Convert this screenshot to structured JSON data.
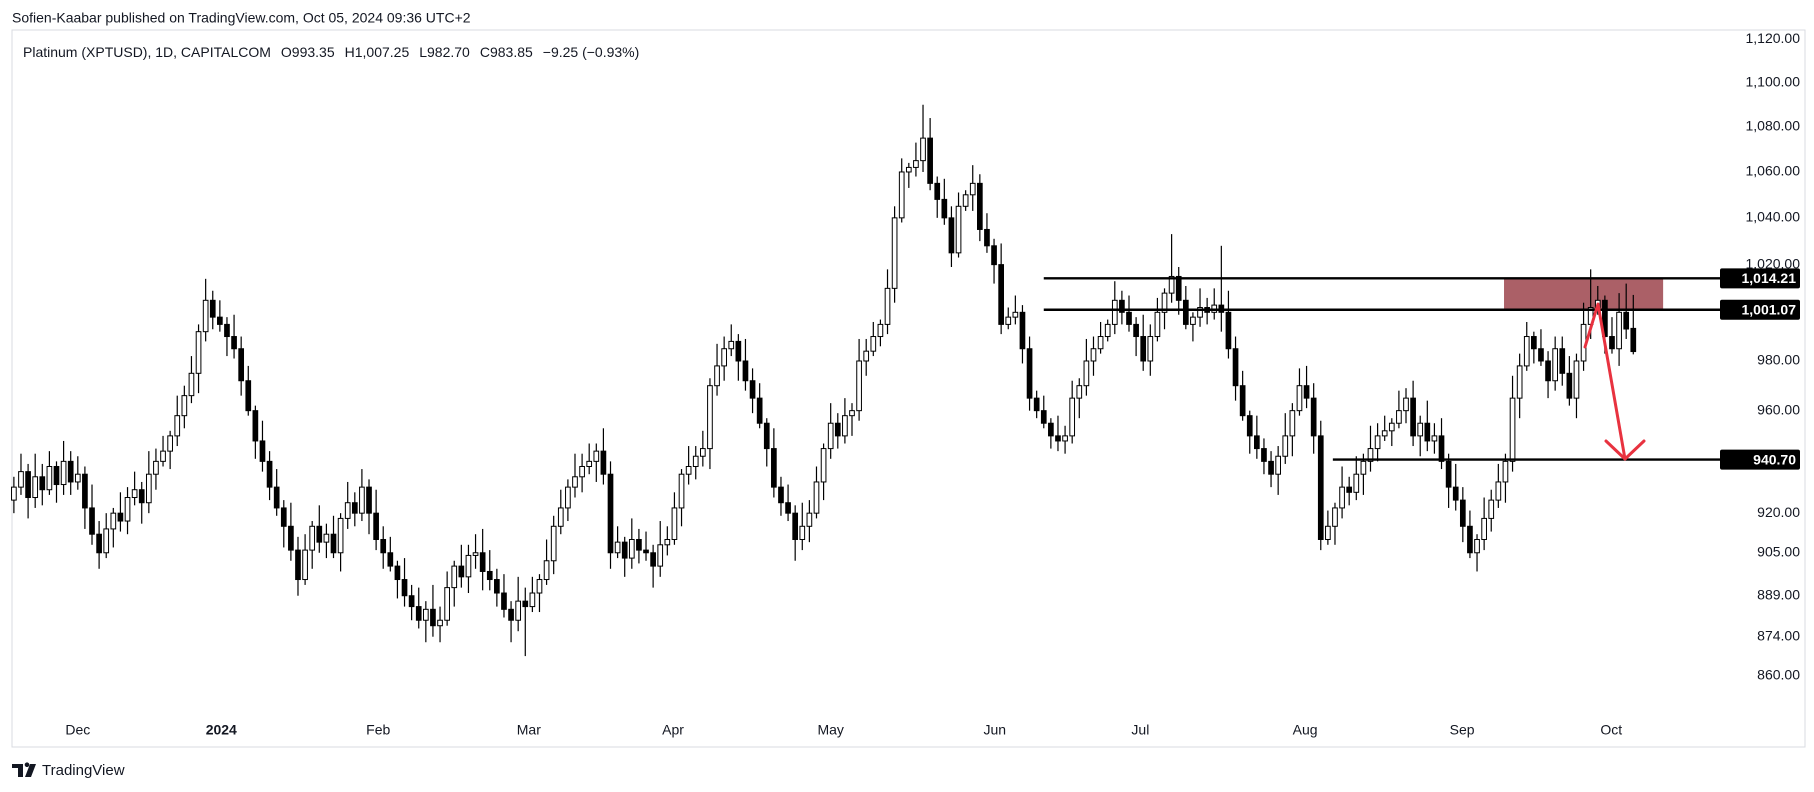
{
  "header": {
    "published": "Sofien-Kaabar published on TradingView.com, Oct 05, 2024 09:36 UTC+2",
    "brand": "TradingView"
  },
  "chart_data": {
    "type": "candlestick",
    "title": "Platinum (XPTUSD), 1D, CAPITALCOM",
    "legend_values": [
      "O993.35",
      "H1,007.25",
      "L982.70",
      "C983.85",
      "−9.25 (−0.93%)"
    ],
    "open": [
      925,
      930,
      936,
      926,
      934,
      929,
      938,
      931,
      940,
      932,
      935,
      922,
      912,
      905,
      914,
      920,
      917,
      926,
      929,
      924,
      935,
      940,
      944,
      950,
      958,
      966,
      975,
      992,
      1005,
      998,
      995,
      990,
      985,
      972,
      960,
      948,
      940,
      930,
      922,
      915,
      906,
      895,
      906,
      915,
      909,
      912,
      905,
      918,
      924,
      920,
      930,
      920,
      910,
      905,
      900,
      895,
      889,
      885,
      880,
      884,
      878,
      880,
      892,
      900,
      896,
      904,
      905,
      898,
      895,
      890,
      884,
      880,
      887,
      885,
      890,
      895,
      902,
      915,
      922,
      930,
      934,
      938,
      940,
      944,
      935,
      905,
      909,
      903,
      910,
      906,
      905,
      900,
      908,
      910,
      922,
      935,
      938,
      942,
      945,
      970,
      978,
      985,
      988,
      980,
      972,
      965,
      955,
      945,
      930,
      924,
      920,
      910,
      915,
      920,
      932,
      945,
      955,
      950,
      958,
      960,
      980,
      984,
      990,
      995,
      1010,
      1040,
      1060,
      1062,
      1065,
      1075,
      1055,
      1048,
      1040,
      1025,
      1045,
      1050,
      1055,
      1035,
      1028,
      1020,
      995,
      998,
      1000,
      985,
      965,
      960,
      955,
      950,
      948,
      950,
      965,
      970,
      980,
      985,
      990,
      995,
      1005,
      1000,
      995,
      990,
      980,
      990,
      1000,
      1008,
      1015,
      1005,
      995,
      998,
      1002,
      1000,
      1003,
      1000,
      985,
      970,
      958,
      950,
      945,
      940,
      935,
      942,
      950,
      960,
      970,
      965,
      950,
      910,
      915,
      922,
      930,
      928,
      935,
      940,
      945,
      950,
      952,
      955,
      960,
      965,
      950,
      955,
      948,
      950,
      940,
      930,
      925,
      915,
      905,
      910,
      918,
      925,
      932,
      940,
      965,
      978,
      990,
      985,
      980,
      972,
      985,
      975,
      965,
      980,
      995,
      1002,
      1005,
      990,
      985,
      1000,
      993.35
    ],
    "high": [
      934,
      943,
      939,
      943,
      939,
      944,
      940,
      948,
      944,
      942,
      938,
      931,
      917,
      920,
      922,
      928,
      930,
      936,
      932,
      944,
      945,
      950,
      952,
      966,
      970,
      982,
      995,
      1014,
      1009,
      1005,
      998,
      999,
      990,
      978,
      962,
      956,
      944,
      937,
      925,
      924,
      911,
      912,
      917,
      923,
      916,
      919,
      920,
      932,
      928,
      937,
      933,
      929,
      915,
      911,
      902,
      903,
      893,
      892,
      887,
      893,
      885,
      898,
      902,
      908,
      908,
      912,
      914,
      906,
      899,
      897,
      887,
      896,
      892,
      896,
      897,
      910,
      919,
      929,
      933,
      943,
      943,
      947,
      947,
      953,
      940,
      915,
      911,
      918,
      914,
      913,
      908,
      917,
      915,
      928,
      937,
      946,
      946,
      952,
      973,
      987,
      990,
      995,
      991,
      989,
      977,
      971,
      957,
      953,
      934,
      931,
      923,
      924,
      925,
      938,
      947,
      963,
      959,
      965,
      963,
      989,
      989,
      996,
      997,
      1018,
      1045,
      1066,
      1064,
      1073,
      1090,
      1084,
      1058,
      1057,
      1045,
      1051,
      1052,
      1063,
      1059,
      1042,
      1031,
      1029,
      1002,
      1007,
      1003,
      990,
      968,
      966,
      957,
      958,
      954,
      972,
      973,
      989,
      990,
      996,
      997,
      1013,
      1009,
      1007,
      998,
      999,
      995,
      1006,
      1010,
      1033,
      1019,
      1011,
      1000,
      1010,
      1006,
      1010,
      1028,
      1009,
      990,
      976,
      960,
      958,
      949,
      944,
      946,
      959,
      963,
      977,
      978,
      971,
      956,
      921,
      924,
      938,
      934,
      942,
      943,
      954,
      955,
      958,
      957,
      968,
      969,
      972,
      958,
      964,
      955,
      957,
      943,
      939,
      930,
      921,
      912,
      926,
      929,
      939,
      943,
      974,
      983,
      996,
      992,
      993,
      984,
      990,
      990,
      982,
      983,
      1004,
      1018,
      1011,
      1007,
      998,
      1008,
      1012,
      1007.25
    ],
    "low": [
      920,
      927,
      918,
      922,
      923,
      927,
      924,
      927,
      927,
      929,
      914,
      908,
      899,
      903,
      907,
      913,
      912,
      923,
      916,
      920,
      929,
      938,
      937,
      946,
      953,
      963,
      967,
      988,
      993,
      992,
      982,
      981,
      966,
      958,
      941,
      936,
      925,
      919,
      907,
      902,
      889,
      893,
      899,
      905,
      903,
      903,
      898,
      914,
      915,
      917,
      912,
      906,
      899,
      898,
      888,
      885,
      880,
      877,
      872,
      874,
      872,
      878,
      885,
      892,
      890,
      899,
      891,
      891,
      885,
      881,
      872,
      876,
      867,
      883,
      883,
      893,
      897,
      912,
      917,
      926,
      928,
      935,
      932,
      931,
      899,
      903,
      896,
      899,
      901,
      902,
      892,
      896,
      904,
      908,
      915,
      931,
      933,
      938,
      937,
      966,
      972,
      982,
      972,
      968,
      959,
      953,
      938,
      926,
      919,
      917,
      902,
      906,
      909,
      918,
      925,
      941,
      945,
      947,
      950,
      956,
      974,
      982,
      986,
      991,
      1004,
      1038,
      1053,
      1058,
      1060,
      1052,
      1040,
      1037,
      1019,
      1023,
      1043,
      1043,
      1030,
      1025,
      1012,
      991,
      993,
      995,
      979,
      960,
      957,
      953,
      945,
      944,
      943,
      947,
      957,
      966,
      974,
      983,
      988,
      991,
      995,
      992,
      982,
      976,
      974,
      988,
      993,
      1004,
      999,
      993,
      988,
      994,
      995,
      997,
      992,
      981,
      964,
      956,
      943,
      941,
      935,
      930,
      927,
      939,
      942,
      958,
      961,
      943,
      906,
      908,
      908,
      918,
      923,
      925,
      927,
      936,
      940,
      948,
      946,
      953,
      955,
      946,
      942,
      944,
      943,
      937,
      922,
      921,
      909,
      903,
      898,
      906,
      913,
      922,
      924,
      936,
      957,
      976,
      979,
      978,
      965,
      968,
      970,
      962,
      957,
      976,
      989,
      999,
      983,
      983,
      978,
      989,
      982.7
    ],
    "close": [
      930,
      936,
      926,
      934,
      929,
      938,
      931,
      940,
      932,
      935,
      922,
      912,
      905,
      914,
      920,
      917,
      926,
      929,
      924,
      935,
      940,
      944,
      950,
      958,
      966,
      975,
      992,
      1005,
      998,
      995,
      990,
      985,
      972,
      960,
      948,
      940,
      930,
      922,
      915,
      906,
      895,
      906,
      915,
      909,
      912,
      905,
      918,
      924,
      920,
      930,
      920,
      910,
      905,
      900,
      895,
      889,
      885,
      880,
      884,
      878,
      880,
      892,
      900,
      896,
      904,
      905,
      898,
      895,
      890,
      884,
      880,
      887,
      885,
      890,
      895,
      902,
      915,
      922,
      930,
      934,
      938,
      940,
      944,
      935,
      905,
      909,
      903,
      910,
      906,
      905,
      900,
      908,
      910,
      922,
      935,
      938,
      942,
      945,
      970,
      978,
      985,
      988,
      980,
      972,
      965,
      955,
      945,
      930,
      924,
      920,
      910,
      915,
      920,
      932,
      945,
      955,
      950,
      958,
      960,
      980,
      984,
      990,
      995,
      1010,
      1040,
      1060,
      1062,
      1065,
      1075,
      1055,
      1048,
      1040,
      1025,
      1045,
      1050,
      1055,
      1035,
      1028,
      1020,
      995,
      998,
      1000,
      985,
      965,
      960,
      955,
      950,
      948,
      950,
      965,
      970,
      980,
      985,
      990,
      995,
      1005,
      1000,
      995,
      990,
      980,
      990,
      1000,
      1008,
      1015,
      1005,
      995,
      998,
      1002,
      1000,
      1003,
      1000,
      985,
      970,
      958,
      950,
      945,
      940,
      935,
      942,
      950,
      960,
      970,
      965,
      950,
      910,
      915,
      922,
      930,
      928,
      935,
      940,
      945,
      950,
      952,
      955,
      960,
      965,
      950,
      955,
      948,
      950,
      940,
      930,
      925,
      915,
      905,
      910,
      918,
      925,
      932,
      940,
      965,
      978,
      990,
      985,
      980,
      972,
      985,
      975,
      965,
      980,
      995,
      1002,
      1005,
      990,
      985,
      1000,
      993.1,
      983.85
    ],
    "up_color": "#ffffff",
    "down_color": "#000000",
    "outline_color": "#000000",
    "log_scale": true,
    "ylim": [
      845,
      1128
    ],
    "yticks": [
      {
        "value": 1120,
        "label": "1,120.00"
      },
      {
        "value": 1100,
        "label": "1,100.00"
      },
      {
        "value": 1080,
        "label": "1,080.00"
      },
      {
        "value": 1060,
        "label": "1,060.00"
      },
      {
        "value": 1040,
        "label": "1,040.00"
      },
      {
        "value": 1020,
        "label": "1,020.00"
      },
      {
        "value": 980,
        "label": "980.00"
      },
      {
        "value": 960,
        "label": "960.00"
      },
      {
        "value": 920,
        "label": "920.00"
      },
      {
        "value": 905,
        "label": "905.00"
      },
      {
        "value": 889,
        "label": "889.00"
      },
      {
        "value": 874,
        "label": "874.00"
      },
      {
        "value": 860,
        "label": "860.00"
      }
    ],
    "xlim": [
      -0.3,
      238.8
    ],
    "xticks": [
      {
        "value": 9,
        "label": "Dec"
      },
      {
        "value": 29.2,
        "label": "2024"
      },
      {
        "value": 51.3,
        "label": "Feb"
      },
      {
        "value": 72.5,
        "label": "Mar"
      },
      {
        "value": 92.8,
        "label": "Apr"
      },
      {
        "value": 115,
        "label": "May"
      },
      {
        "value": 138.1,
        "label": "Jun"
      },
      {
        "value": 158.6,
        "label": "Jul"
      },
      {
        "value": 181.8,
        "label": "Aug"
      },
      {
        "value": 203.9,
        "label": "Sep"
      },
      {
        "value": 224.9,
        "label": "Oct"
      }
    ],
    "levels": [
      {
        "value": 1014.21,
        "label": "1,014.21",
        "x_start": 145
      },
      {
        "value": 1001.07,
        "label": "1,001.07",
        "x_start": 145
      },
      {
        "value": 940.7,
        "label": "940.70",
        "x_start": 185.7
      }
    ],
    "zone": {
      "xlim": [
        209.8,
        232.2
      ],
      "ylim": [
        1001.07,
        1014.21
      ],
      "color": "#a24f57"
    }
  }
}
